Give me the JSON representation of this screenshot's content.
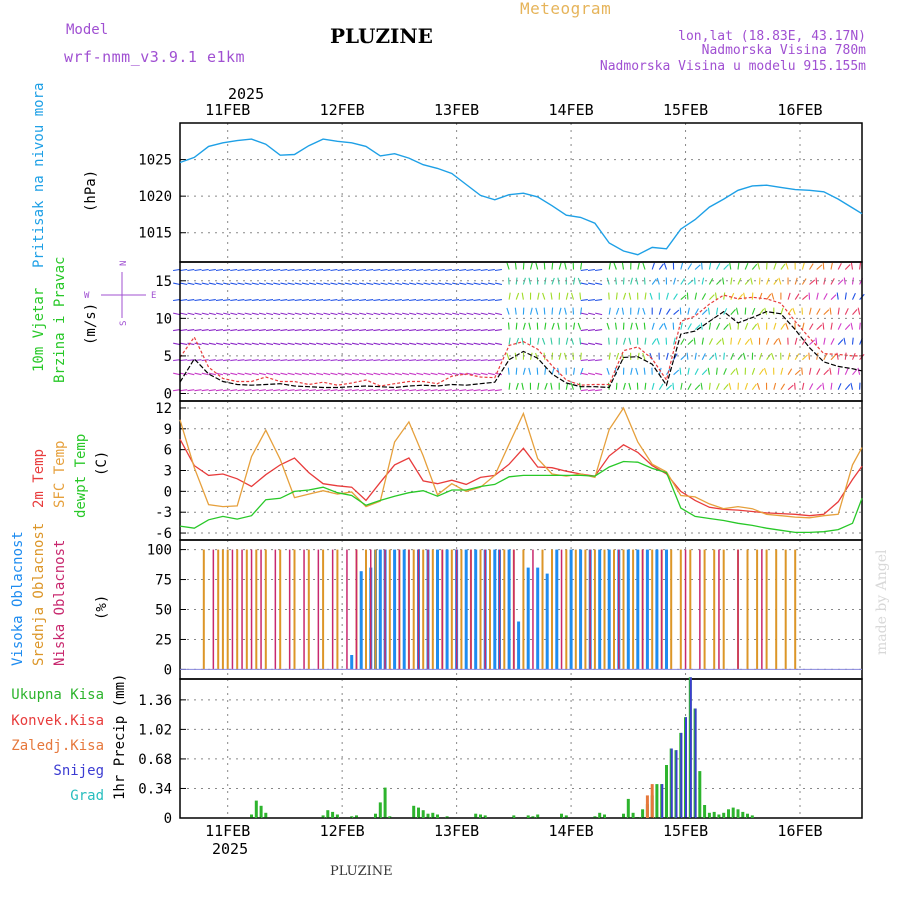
{
  "header": {
    "model_label": "Model",
    "model_name": "wrf-nmm_v3.9.1 e1km",
    "meteogram_label": "Meteogram",
    "location": "PLUZINE",
    "coords": "lon,lat (18.83E, 43.17N)",
    "elevation": "Nadmorska Visina 780m",
    "model_elevation": "Nadmorska Visina u modelu 915.155m",
    "footer_location": "PLUZINE",
    "watermark": "made by Angel"
  },
  "colors": {
    "pressure": "#1ea0e6",
    "temp2m": "#e83c3c",
    "sfc": "#e6a03c",
    "dewpt": "#28c828",
    "high_cloud": "#1e8cf0",
    "mid_cloud": "#dc9628",
    "low_cloud": "#c8286e",
    "total_precip": "#2db42d",
    "snow": "#3c3cd2",
    "grad": "#28bebe",
    "wind_speed": "#000000",
    "gust": "#e83c3c",
    "label_purple": "#a050d2"
  },
  "time_axis": {
    "year": "2025",
    "labels": [
      "11FEB",
      "12FEB",
      "13FEB",
      "14FEB",
      "15FEB",
      "16FEB"
    ]
  },
  "panels": {
    "pressure": {
      "ylabel": "Pritisak na nivou mora",
      "unit": "(hPa)",
      "ticks": [
        "1015",
        "1020",
        "1025"
      ]
    },
    "wind": {
      "ylabel1": "10m Vjetar",
      "ylabel2": "Brzina i Pravac",
      "unit": "(m/s)",
      "compass_w": "W",
      "compass_e": "E",
      "compass_n": "N",
      "compass_s": "S",
      "ticks": [
        "0",
        "5",
        "10",
        "15"
      ]
    },
    "temp": {
      "ylabel1": "2m Temp",
      "ylabel2": "SFC Temp",
      "ylabel3": "dewpt Temp",
      "unit": "(C)",
      "ticks": [
        "-6",
        "-3",
        "0",
        "3",
        "6",
        "9",
        "12"
      ]
    },
    "cloud": {
      "ylabel1": "Visoka Oblacnost",
      "ylabel2": "Srednja Oblacnost",
      "ylabel3": "Niska Oblacnost",
      "unit": "(%)",
      "ticks": [
        "0",
        "25",
        "50",
        "75",
        "100"
      ]
    },
    "precip": {
      "legend": [
        "Ukupna Kisa",
        "Konvek.Kisa",
        "Zaledj.Kisa",
        "Snijeg",
        "Grad"
      ],
      "unit": "1hr Precip (mm)",
      "ticks": [
        "0",
        "0.34",
        "0.68",
        "1.02",
        "1.36"
      ]
    }
  },
  "chart_data": [
    {
      "type": "line",
      "title": "Pritisak na nivou mora",
      "ylabel": "(hPa)",
      "xlim": [
        0,
        143
      ],
      "ylim": [
        1011,
        1030
      ],
      "x": [
        0,
        3,
        6,
        9,
        12,
        15,
        18,
        21,
        24,
        27,
        30,
        33,
        36,
        39,
        42,
        45,
        48,
        51,
        54,
        57,
        60,
        63,
        66,
        69,
        72,
        75,
        78,
        81,
        84,
        87,
        90,
        93,
        96,
        99,
        102,
        105,
        108,
        111,
        114,
        117,
        120,
        123,
        126,
        129,
        132,
        135,
        138,
        141,
        143
      ],
      "series": [
        {
          "values": [
            1024.6,
            1025.3,
            1026.8,
            1027.3,
            1027.6,
            1027.8,
            1027.1,
            1025.6,
            1025.7,
            1026.9,
            1027.8,
            1027.5,
            1027.3,
            1026.8,
            1025.5,
            1025.8,
            1025.2,
            1024.3,
            1023.8,
            1023.1,
            1021.6,
            1020.1,
            1019.5,
            1020.2,
            1020.4,
            1019.9,
            1018.7,
            1017.4,
            1017.1,
            1016.3,
            1013.6,
            1012.5,
            1012.0,
            1013.0,
            1012.8,
            1015.5,
            1016.8,
            1018.5,
            1019.6,
            1020.8,
            1021.4,
            1021.5,
            1021.2,
            1020.9,
            1020.8,
            1020.6,
            1019.6,
            1018.4,
            1017.6
          ]
        }
      ]
    },
    {
      "type": "line",
      "title": "10m Vjetar Brzina i Pravac",
      "ylabel": "(m/s)",
      "xlim": [
        0,
        143
      ],
      "ylim": [
        -1,
        17.5
      ],
      "x": [
        0,
        3,
        6,
        9,
        12,
        15,
        18,
        21,
        24,
        27,
        30,
        33,
        36,
        39,
        42,
        45,
        48,
        51,
        54,
        57,
        60,
        63,
        66,
        69,
        72,
        75,
        78,
        81,
        84,
        87,
        90,
        93,
        96,
        99,
        102,
        105,
        108,
        111,
        114,
        117,
        120,
        123,
        126,
        129,
        132,
        135,
        138,
        141,
        143
      ],
      "series": [
        {
          "name": "speed",
          "values": [
            1.5,
            4.6,
            2.6,
            1.6,
            1.2,
            1.1,
            1.2,
            1.3,
            1.0,
            0.9,
            0.8,
            0.8,
            0.9,
            1.0,
            0.9,
            0.8,
            1.0,
            1.1,
            1.0,
            1.2,
            1.1,
            1.3,
            1.5,
            4.5,
            5.6,
            4.7,
            2.6,
            1.4,
            0.9,
            0.9,
            0.8,
            4.8,
            4.9,
            3.9,
            1.1,
            7.9,
            8.3,
            9.6,
            10.9,
            9.4,
            10.1,
            10.9,
            10.6,
            8.5,
            6.1,
            4.2,
            3.6,
            3.3,
            3.0
          ]
        },
        {
          "name": "gust",
          "values": [
            4.8,
            7.5,
            3.5,
            2.0,
            1.6,
            1.6,
            2.2,
            1.6,
            1.6,
            1.2,
            1.5,
            1.1,
            1.4,
            1.8,
            1.0,
            1.3,
            1.6,
            1.6,
            1.3,
            2.3,
            2.6,
            2.2,
            2.1,
            6.4,
            6.9,
            5.9,
            3.7,
            1.8,
            1.1,
            1.2,
            1.2,
            5.7,
            6.2,
            4.6,
            1.8,
            9.6,
            10.3,
            11.9,
            13.1,
            12.6,
            12.8,
            12.6,
            12.0,
            9.6,
            7.4,
            5.3,
            5.2,
            5.0,
            5.0
          ]
        }
      ]
    },
    {
      "type": "line",
      "title": "2m Temp / SFC Temp / dewpt Temp",
      "ylabel": "(C)",
      "xlim": [
        0,
        143
      ],
      "ylim": [
        -7,
        13
      ],
      "x": [
        0,
        3,
        6,
        9,
        12,
        15,
        18,
        21,
        24,
        27,
        30,
        33,
        36,
        39,
        42,
        45,
        48,
        51,
        54,
        57,
        60,
        63,
        66,
        69,
        72,
        75,
        78,
        81,
        84,
        87,
        90,
        93,
        96,
        99,
        102,
        105,
        108,
        111,
        114,
        117,
        120,
        123,
        126,
        129,
        132,
        135,
        138,
        141,
        143
      ],
      "series": [
        {
          "name": "2m Temp",
          "values": [
            7.5,
            3.7,
            2.3,
            2.5,
            1.8,
            0.7,
            2.4,
            3.8,
            4.8,
            2.7,
            1.1,
            0.8,
            0.6,
            -1.3,
            1.3,
            3.8,
            4.8,
            1.5,
            1.1,
            1.6,
            1.0,
            2.0,
            2.3,
            3.9,
            6.2,
            3.5,
            3.4,
            2.9,
            2.5,
            2.2,
            5.1,
            6.7,
            5.6,
            3.7,
            2.5,
            0.0,
            -1.3,
            -2.3,
            -2.6,
            -2.7,
            -2.9,
            -3.1,
            -3.2,
            -3.3,
            -3.5,
            -3.3,
            -1.5,
            1.7,
            3.6
          ]
        },
        {
          "name": "SFC Temp",
          "values": [
            10.3,
            3.4,
            -1.9,
            -2.2,
            -2.1,
            5.0,
            8.8,
            4.6,
            -0.9,
            -0.4,
            0.1,
            -0.4,
            -0.1,
            -2.2,
            -1.4,
            7.1,
            10.0,
            5.1,
            -0.5,
            1.1,
            0.0,
            0.6,
            2.3,
            6.8,
            11.2,
            4.7,
            2.5,
            2.2,
            2.5,
            2.0,
            8.9,
            12.0,
            7.1,
            3.9,
            2.8,
            -0.6,
            -0.8,
            -1.8,
            -2.5,
            -2.2,
            -2.5,
            -3.3,
            -3.5,
            -3.7,
            -3.8,
            -3.5,
            -3.3,
            3.8,
            6.3
          ]
        },
        {
          "name": "dewpt Temp",
          "values": [
            -5.0,
            -5.3,
            -4.1,
            -3.6,
            -4.0,
            -3.5,
            -1.2,
            -1.0,
            0.0,
            0.2,
            0.6,
            -0.2,
            -0.6,
            -2.0,
            -1.3,
            -0.7,
            -0.2,
            0.1,
            -0.7,
            0.2,
            0.2,
            0.7,
            1.0,
            2.1,
            2.3,
            2.3,
            2.3,
            2.3,
            2.3,
            2.2,
            3.5,
            4.3,
            4.2,
            3.3,
            2.7,
            -2.4,
            -3.6,
            -3.9,
            -4.2,
            -4.6,
            -4.9,
            -5.3,
            -5.6,
            -5.9,
            -5.9,
            -5.8,
            -5.5,
            -4.6,
            -1.0
          ]
        }
      ]
    },
    {
      "type": "bar",
      "title": "Visoka / Srednja / Niska Oblacnost",
      "ylabel": "(%)",
      "xlim": [
        0,
        143
      ],
      "ylim": [
        0,
        105
      ],
      "series": [
        {
          "name": "Visoka Oblacnost",
          "x": [
            36,
            38,
            40,
            41,
            42,
            43,
            45,
            47,
            50,
            52,
            54,
            56,
            58,
            60,
            62,
            64,
            66,
            67,
            69,
            71,
            73,
            75,
            77,
            79,
            82,
            84,
            86,
            88,
            90,
            92,
            94,
            96,
            98,
            100,
            102
          ],
          "values": [
            12,
            82,
            85,
            100,
            100,
            100,
            100,
            100,
            100,
            100,
            100,
            100,
            100,
            100,
            100,
            100,
            100,
            100,
            100,
            40,
            85,
            85,
            80,
            100,
            100,
            100,
            100,
            100,
            100,
            100,
            100,
            100,
            100,
            100,
            100
          ]
        },
        {
          "name": "Srednja Oblacnost",
          "x": [
            5,
            8,
            9,
            10,
            12,
            14,
            16,
            18,
            21,
            24,
            27,
            30,
            33,
            37,
            39,
            41,
            44,
            46,
            48,
            49,
            51,
            53,
            55,
            57,
            59,
            61,
            63,
            65,
            68,
            70,
            72,
            76,
            78,
            81,
            83,
            85,
            87,
            89,
            91,
            93,
            95,
            97,
            99,
            101,
            103,
            105,
            107,
            110,
            112,
            114,
            117,
            119,
            121,
            123,
            125,
            127,
            129
          ],
          "values": [
            100,
            100,
            100,
            100,
            100,
            100,
            100,
            100,
            100,
            100,
            100,
            100,
            100,
            100,
            100,
            100,
            100,
            100,
            100,
            100,
            100,
            100,
            100,
            100,
            100,
            100,
            100,
            100,
            100,
            100,
            100,
            100,
            100,
            100,
            100,
            100,
            100,
            100,
            100,
            100,
            100,
            100,
            100,
            100,
            100,
            100,
            100,
            100,
            100,
            100,
            100,
            100,
            100,
            100,
            100,
            100,
            100
          ]
        },
        {
          "name": "Niska Oblacnost",
          "x": [
            7,
            11,
            13,
            15,
            17,
            20,
            23,
            26,
            29,
            32,
            35,
            37,
            40,
            43,
            46,
            48,
            50,
            52,
            55,
            58,
            61,
            64,
            67,
            70,
            74,
            80,
            86,
            92,
            97,
            101,
            106,
            109,
            113,
            117,
            122
          ],
          "values": [
            100,
            100,
            100,
            100,
            100,
            100,
            100,
            100,
            100,
            100,
            100,
            100,
            100,
            100,
            100,
            100,
            100,
            100,
            100,
            100,
            100,
            100,
            100,
            100,
            100,
            100,
            100,
            100,
            100,
            100,
            100,
            100,
            100,
            100,
            100
          ]
        }
      ]
    },
    {
      "type": "bar",
      "title": "1hr Precip",
      "ylabel": "(mm)",
      "xlim": [
        0,
        143
      ],
      "ylim": [
        0,
        1.6
      ],
      "series": [
        {
          "name": "Ukupna Kisa",
          "x": [
            15,
            16,
            17,
            18,
            30,
            31,
            32,
            33,
            36,
            37,
            41,
            42,
            43,
            44,
            49,
            50,
            51,
            52,
            53,
            54,
            56,
            62,
            63,
            64,
            70,
            73,
            74,
            75,
            80,
            81,
            87,
            88,
            89,
            93,
            94,
            95,
            96,
            97,
            98,
            99,
            100,
            101,
            102,
            103,
            104,
            105,
            106,
            107,
            108,
            109,
            110,
            111,
            112,
            113,
            114,
            115,
            116,
            117,
            118,
            119,
            120
          ],
          "values": [
            0.04,
            0.2,
            0.14,
            0.06,
            0.03,
            0.09,
            0.07,
            0.04,
            0.02,
            0.03,
            0.05,
            0.18,
            0.35,
            0.02,
            0.14,
            0.12,
            0.09,
            0.05,
            0.06,
            0.04,
            0.02,
            0.05,
            0.04,
            0.03,
            0.03,
            0.03,
            0.02,
            0.04,
            0.05,
            0.03,
            0.02,
            0.06,
            0.04,
            0.05,
            0.22,
            0.06,
            0.01,
            0.1,
            0.16,
            0.26,
            0.39,
            0.39,
            0.61,
            0.8,
            0.78,
            0.98,
            1.16,
            1.62,
            1.26,
            0.54,
            0.15,
            0.06,
            0.07,
            0.04,
            0.06,
            0.1,
            0.12,
            0.1,
            0.07,
            0.05,
            0.03
          ]
        },
        {
          "name": "Zaledj.Kisa",
          "x": [
            98,
            99
          ],
          "values": [
            0.26,
            0.39
          ]
        },
        {
          "name": "Snijeg",
          "x": [
            101,
            103,
            104,
            105,
            106,
            107,
            108
          ],
          "values": [
            0.39,
            0.8,
            0.78,
            0.98,
            1.16,
            1.62,
            1.26
          ]
        }
      ]
    }
  ]
}
